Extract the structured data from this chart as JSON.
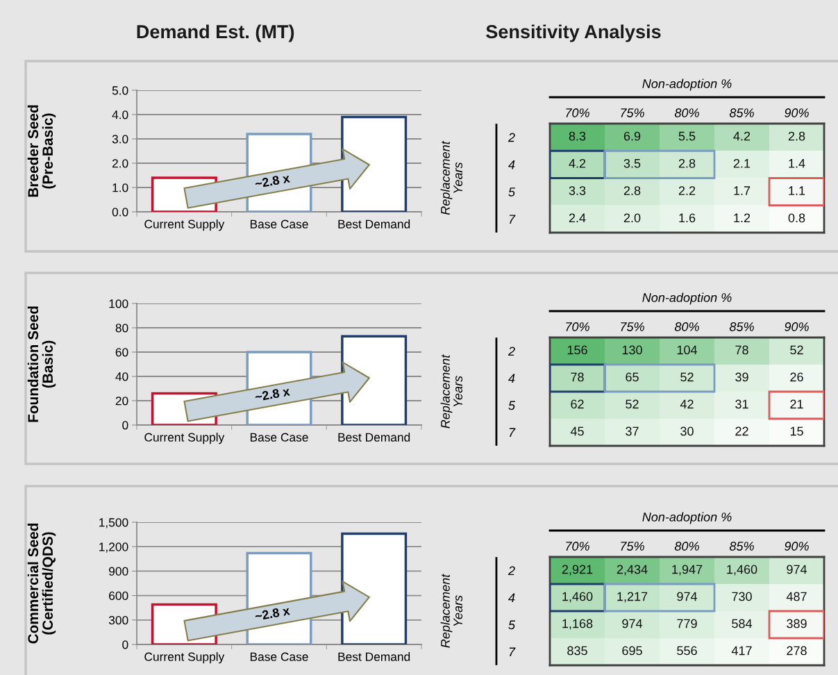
{
  "chart_data": [
    {
      "type": "bar",
      "title": "Demand Est. (MT)",
      "ylabel": "Breeder Seed\n(Pre-Basic)",
      "categories": [
        "Current Supply",
        "Base Case",
        "Best Demand"
      ],
      "values": [
        1.4,
        3.2,
        3.9
      ],
      "colors": [
        "#c8102e",
        "#7a9cc0",
        "#1f3d6d"
      ],
      "ylim": [
        0,
        5
      ],
      "yticks": [
        {
          "value": 0,
          "label": "0.0"
        },
        {
          "value": 1,
          "label": "1.0"
        },
        {
          "value": 2,
          "label": "2.0"
        },
        {
          "value": 3,
          "label": "3.0"
        },
        {
          "value": 4,
          "label": "4.0"
        },
        {
          "value": 5,
          "label": "5.0"
        }
      ],
      "grid": "y",
      "annotations": [
        "~2.8 x"
      ]
    },
    {
      "type": "heatmap",
      "title": "Sensitivity Analysis",
      "xlabel": "Non-adoption %",
      "ylabel": "Replacement\nYears",
      "categories": [
        "70%",
        "75%",
        "80%",
        "85%",
        "90%"
      ],
      "y_categories": [
        "2",
        "4",
        "5",
        "7"
      ],
      "cells": [
        [
          8.3,
          6.9,
          5.5,
          4.2,
          2.8
        ],
        [
          4.2,
          3.5,
          2.8,
          2.1,
          1.4
        ],
        [
          3.3,
          2.8,
          2.2,
          1.7,
          1.1
        ],
        [
          2.4,
          2.0,
          1.6,
          1.2,
          0.8
        ]
      ],
      "cell_labels": [
        [
          "8.3",
          "6.9",
          "5.5",
          "4.2",
          "2.8"
        ],
        [
          "4.2",
          "3.5",
          "2.8",
          "2.1",
          "1.4"
        ],
        [
          "3.3",
          "2.8",
          "2.2",
          "1.7",
          "1.1"
        ],
        [
          "2.4",
          "2.0",
          "1.6",
          "1.2",
          "0.8"
        ]
      ]
    },
    {
      "type": "bar",
      "ylabel": "Foundation Seed\n(Basic)",
      "categories": [
        "Current Supply",
        "Base Case",
        "Best Demand"
      ],
      "values": [
        26,
        60,
        73
      ],
      "colors": [
        "#c8102e",
        "#7a9cc0",
        "#1f3d6d"
      ],
      "ylim": [
        0,
        100
      ],
      "yticks": [
        0,
        20,
        40,
        60,
        80,
        100
      ],
      "grid": "y",
      "annotations": [
        "~2.8 x"
      ]
    },
    {
      "type": "heatmap",
      "xlabel": "Non-adoption %",
      "ylabel": "Replacement\nYears",
      "categories": [
        "70%",
        "75%",
        "80%",
        "85%",
        "90%"
      ],
      "y_categories": [
        "2",
        "4",
        "5",
        "7"
      ],
      "cells": [
        [
          156,
          130,
          104,
          78,
          52
        ],
        [
          78,
          65,
          52,
          39,
          26
        ],
        [
          62,
          52,
          42,
          31,
          21
        ],
        [
          45,
          37,
          30,
          22,
          15
        ]
      ],
      "data_labels": true
    },
    {
      "type": "bar",
      "ylabel": "Commercial Seed\n(Certified/QDS)",
      "categories": [
        "Current Supply",
        "Base Case",
        "Best Demand"
      ],
      "values": [
        490,
        1120,
        1360
      ],
      "colors": [
        "#c8102e",
        "#7a9cc0",
        "#1f3d6d"
      ],
      "ylim": [
        0,
        1500
      ],
      "yticks": [
        0,
        300,
        600,
        900,
        {
          "value": 1200,
          "label": "1,200"
        },
        {
          "value": 1500,
          "label": "1,500"
        }
      ],
      "grid": "y",
      "annotations": [
        "~2.8 x"
      ]
    },
    {
      "type": "heatmap",
      "xlabel": "Non-adoption %",
      "ylabel": "Replacement\nYears",
      "categories": [
        "70%",
        "75%",
        "80%",
        "85%",
        "90%"
      ],
      "y_categories": [
        "2",
        "4",
        "5",
        "7"
      ],
      "cells": [
        [
          2921,
          2434,
          1947,
          1460,
          974
        ],
        [
          1460,
          1217,
          974,
          730,
          487
        ],
        [
          1168,
          974,
          779,
          584,
          389
        ],
        [
          835,
          695,
          556,
          417,
          278
        ]
      ],
      "cell_labels": [
        [
          "2,921",
          "2,434",
          "1,947",
          "1,460",
          "974"
        ],
        [
          "1,460",
          "1,217",
          "974",
          "730",
          "487"
        ],
        [
          "1,168",
          "974",
          "779",
          "584",
          "389"
        ],
        [
          "835",
          "695",
          "556",
          "417",
          "278"
        ]
      ]
    }
  ]
}
